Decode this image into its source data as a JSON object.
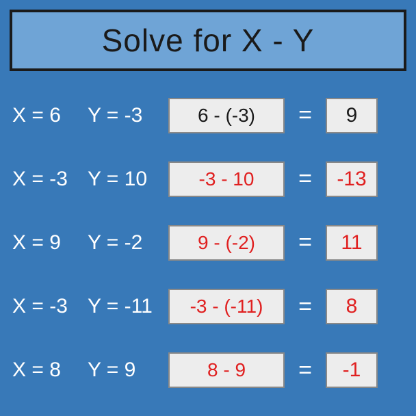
{
  "title": "Solve for X - Y",
  "colors": {
    "background": "#3879b8",
    "title_bg": "#6fa4d6",
    "title_border": "#1a1a1a",
    "box_bg": "#ededed",
    "box_border": "#888888",
    "text_white": "#ffffff",
    "text_black": "#1a1a1a",
    "text_red": "#e02020"
  },
  "rows": [
    {
      "x": "X =  6",
      "y": "Y = -3",
      "expr": "6 - (-3)",
      "result": "9",
      "color": "black"
    },
    {
      "x": "X = -3",
      "y": "Y = 10",
      "expr": "-3 - 10",
      "result": "-13",
      "color": "red"
    },
    {
      "x": "X = 9",
      "y": "Y = -2",
      "expr": "9 - (-2)",
      "result": "11",
      "color": "red"
    },
    {
      "x": "X = -3",
      "y": "Y = -11",
      "expr": "-3 - (-11)",
      "result": "8",
      "color": "red"
    },
    {
      "x": "X = 8",
      "y": "Y = 9",
      "expr": "8 - 9",
      "result": "-1",
      "color": "red"
    }
  ],
  "equals": "="
}
